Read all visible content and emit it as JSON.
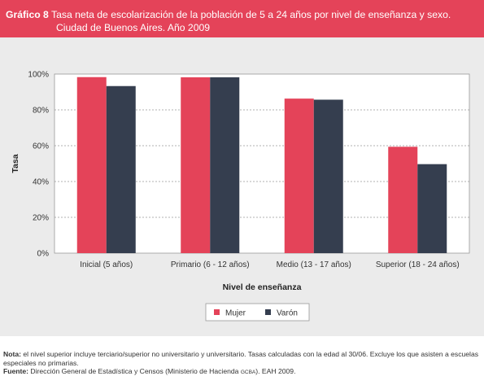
{
  "header": {
    "label": "Gráfico 8",
    "title_line1": "Tasa neta de escolarización de la población de 5 a 24 años por nivel de enseñanza y sexo.",
    "title_line2": "Ciudad de Buenos Aires. Año 2009"
  },
  "colors": {
    "header_bg": "#e44359",
    "panel_bg": "#ebebeb",
    "mujer": "#e44359",
    "varon": "#353e4f"
  },
  "chart_data": {
    "type": "bar",
    "title": "Tasa neta de escolarización de la población de 5 a 24 años por nivel de enseñanza y sexo. Ciudad de Buenos Aires. Año 2009",
    "xlabel": "Nivel de enseñanza",
    "ylabel": "Tasa",
    "categories": [
      "Inicial (5 años)",
      "Primario (6 - 12 años)",
      "Medio (13 - 17 años)",
      "Superior (18 - 24 años)"
    ],
    "series": [
      {
        "name": "Mujer",
        "values": [
          98.3,
          98.2,
          86.3,
          59.4
        ]
      },
      {
        "name": "Varón",
        "values": [
          93.3,
          98.2,
          85.7,
          49.7
        ]
      }
    ],
    "ylim": [
      0,
      100
    ],
    "yticks": [
      "0%",
      "20%",
      "40%",
      "60%",
      "80%",
      "100%"
    ],
    "ytick_values": [
      0,
      20,
      40,
      60,
      80,
      100
    ],
    "grid": true,
    "legend_position": "bottom-center"
  },
  "notes": {
    "nota_label": "Nota:",
    "nota_text": "el nivel superior incluye terciario/superior no universitario y universitario. Tasas calculadas con la edad al 30/06. Excluye los que asisten a escuelas especiales no primarias.",
    "fuente_label": "Fuente:",
    "fuente_text": "Dirección General de Estadística y Censos (Ministerio de Hacienda",
    "fuente_sc": "GCBA",
    "fuente_end": "). EAH 2009."
  }
}
